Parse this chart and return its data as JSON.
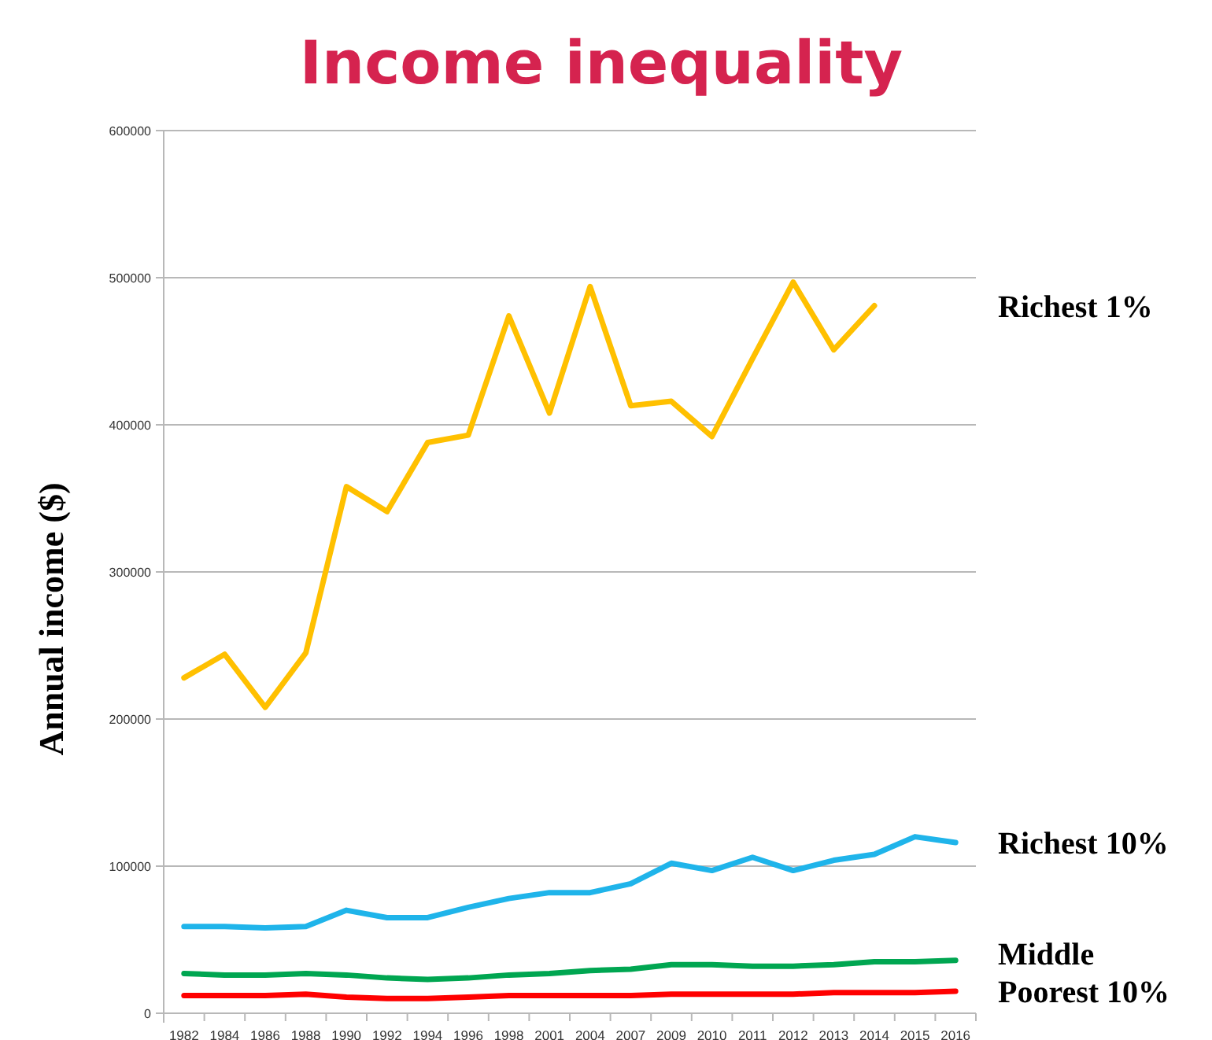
{
  "chart_data": {
    "type": "line",
    "title": "Income inequality",
    "ylabel": "Annual income ($)",
    "categories": [
      "1982",
      "1984",
      "1986",
      "1988",
      "1990",
      "1992",
      "1994",
      "1996",
      "1998",
      "2001",
      "2004",
      "2007",
      "2009",
      "2010",
      "2011",
      "2012",
      "2013",
      "2014",
      "2015",
      "2016"
    ],
    "series": [
      {
        "name": "Richest 1%",
        "color": "#ffc000",
        "values": [
          228000,
          244000,
          208000,
          245000,
          358000,
          341000,
          388000,
          393000,
          474000,
          408000,
          494000,
          413000,
          416000,
          392000,
          445000,
          497000,
          451000,
          481000,
          null,
          null
        ]
      },
      {
        "name": "Richest 10%",
        "color": "#1fb4ea",
        "values": [
          59000,
          59000,
          58000,
          59000,
          70000,
          65000,
          65000,
          72000,
          78000,
          82000,
          82000,
          88000,
          102000,
          97000,
          106000,
          97000,
          104000,
          108000,
          120000,
          116000
        ]
      },
      {
        "name": "Middle",
        "color": "#00a651",
        "values": [
          27000,
          26000,
          26000,
          27000,
          26000,
          24000,
          23000,
          24000,
          26000,
          27000,
          29000,
          30000,
          33000,
          33000,
          32000,
          32000,
          33000,
          35000,
          35000,
          36000
        ]
      },
      {
        "name": "Poorest 10%",
        "color": "#ff0000",
        "values": [
          12000,
          12000,
          12000,
          13000,
          11000,
          10000,
          10000,
          11000,
          12000,
          12000,
          12000,
          12000,
          13000,
          13000,
          13000,
          13000,
          14000,
          14000,
          14000,
          15000
        ]
      }
    ],
    "ylim": [
      0,
      600000
    ],
    "yticks": [
      0,
      100000,
      200000,
      300000,
      400000,
      500000,
      600000
    ],
    "grid": "y",
    "marker": "none",
    "line_style": "solid",
    "legend": "right"
  }
}
